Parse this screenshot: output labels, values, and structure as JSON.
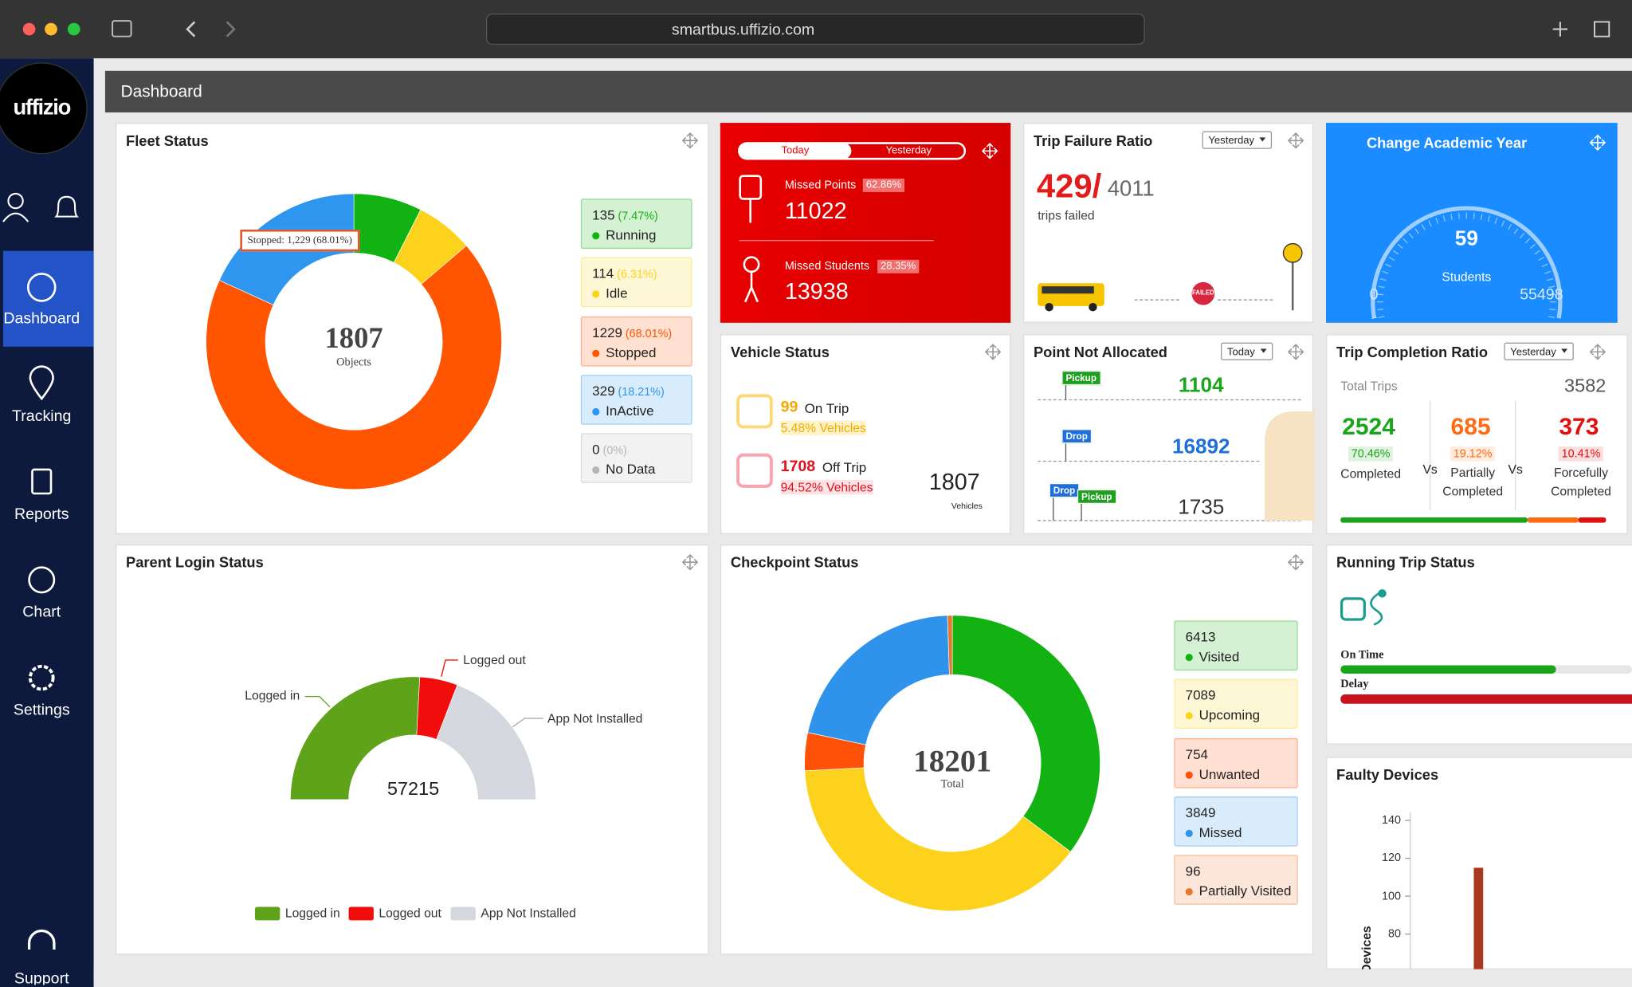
{
  "browser": {
    "url": "smartbus.uffizio.com"
  },
  "sidebar": {
    "logo": "uffizio",
    "items": [
      "Dashboard",
      "Tracking",
      "Reports",
      "Chart",
      "Settings",
      "Support"
    ]
  },
  "header": {
    "title": "Dashboard"
  },
  "fleet_status": {
    "title": "Fleet Status",
    "total": 1807,
    "total_label": "Objects",
    "tooltip": "Stopped: 1,229 (68.01%)",
    "items": [
      {
        "count": 135,
        "percent": "(7.47%)",
        "label": "Running",
        "color": "#13b213"
      },
      {
        "count": 114,
        "percent": "(6.31%)",
        "label": "Idle",
        "color": "#fcd21c"
      },
      {
        "count": 1229,
        "percent": "(68.01%)",
        "label": "Stopped",
        "color": "#ff5500"
      },
      {
        "count": 329,
        "percent": "(18.21%)",
        "label": "InActive",
        "color": "#2e96ee"
      },
      {
        "count": 0,
        "percent": "(0%)",
        "label": "No Data",
        "color": "#b5b5b5"
      }
    ]
  },
  "missed": {
    "tabs": [
      "Today",
      "Yesterday"
    ],
    "rows": [
      {
        "label": "Missed Points",
        "percent": "62.86%",
        "value": 11022
      },
      {
        "label": "Missed Students",
        "percent": "28.35%",
        "value": 13938
      }
    ]
  },
  "trip_failure": {
    "title": "Trip Failure Ratio",
    "period": "Yesterday",
    "failed": "429/",
    "total": 4011,
    "caption": "trips failed",
    "badge": "FAILED"
  },
  "academic_year": {
    "title": "Change Academic Year",
    "value": 59,
    "label": "Students",
    "min": 0,
    "max": 55498
  },
  "vehicle_status": {
    "title": "Vehicle Status",
    "rows": [
      {
        "count": 99,
        "label": "On Trip",
        "share": "5.48% Vehicles",
        "color": "#f5a800"
      },
      {
        "count": 1708,
        "label": "Off Trip",
        "share": "94.52% Vehicles",
        "color": "#e0101e"
      }
    ],
    "total": 1807,
    "total_label": "Vehicles"
  },
  "point_not_allocated": {
    "title": "Point Not Allocated",
    "period": "Today",
    "rows": [
      {
        "tags": [
          {
            "label": "Pickup",
            "color": "#1f9e1f"
          }
        ],
        "value": 1104,
        "color": "#1aa51a"
      },
      {
        "tags": [
          {
            "label": "Drop",
            "color": "#1e6fd9"
          }
        ],
        "value": 16892,
        "color": "#1e6fd9"
      },
      {
        "tags": [
          {
            "label": "Drop",
            "color": "#1e6fd9"
          },
          {
            "label": "Pickup",
            "color": "#1f9e1f"
          }
        ],
        "value": 1735,
        "color": "#333333"
      }
    ]
  },
  "trip_completion": {
    "title": "Trip Completion Ratio",
    "period": "Yesterday",
    "total_label": "Total Trips",
    "total": 3582,
    "separator": "Vs",
    "items": [
      {
        "value": 2524,
        "percent": "70.46%",
        "label": "Completed",
        "color": "#1aa51a"
      },
      {
        "value": 685,
        "percent": "19.12%",
        "label": "Partially Completed",
        "color": "#ff6a13"
      },
      {
        "value": 373,
        "percent": "10.41%",
        "label": "Forcefully Completed",
        "color": "#e01010"
      }
    ]
  },
  "parent_login": {
    "title": "Parent Login Status",
    "total": 57215,
    "items": [
      {
        "label": "Logged in",
        "value": 29580,
        "color": "#5ea31a"
      },
      {
        "label": "Logged out",
        "value": 5720,
        "color": "#f20d0d"
      },
      {
        "label": "App Not Installed",
        "value": 21915,
        "color": "#d4d7de"
      }
    ]
  },
  "checkpoint": {
    "title": "Checkpoint Status",
    "total": 18201,
    "total_label": "Total",
    "items": [
      {
        "count": 6413,
        "label": "Visited",
        "color": "#13b213"
      },
      {
        "count": 7089,
        "label": "Upcoming",
        "color": "#fcd21c"
      },
      {
        "count": 754,
        "label": "Unwanted",
        "color": "#ff5108"
      },
      {
        "count": 3849,
        "label": "Missed",
        "color": "#2f93ec"
      },
      {
        "count": 96,
        "label": "Partially Visited",
        "color": "#e8772e"
      }
    ]
  },
  "running_trip": {
    "title": "Running Trip Status",
    "rows": [
      "On Time",
      "Delay"
    ]
  },
  "faulty_devices": {
    "title": "Faulty Devices",
    "y_label": "Devices",
    "ylim": [
      60,
      140
    ],
    "yticks": [
      80,
      100,
      120,
      140
    ],
    "values": [
      115
    ],
    "color": "#a8391e"
  }
}
